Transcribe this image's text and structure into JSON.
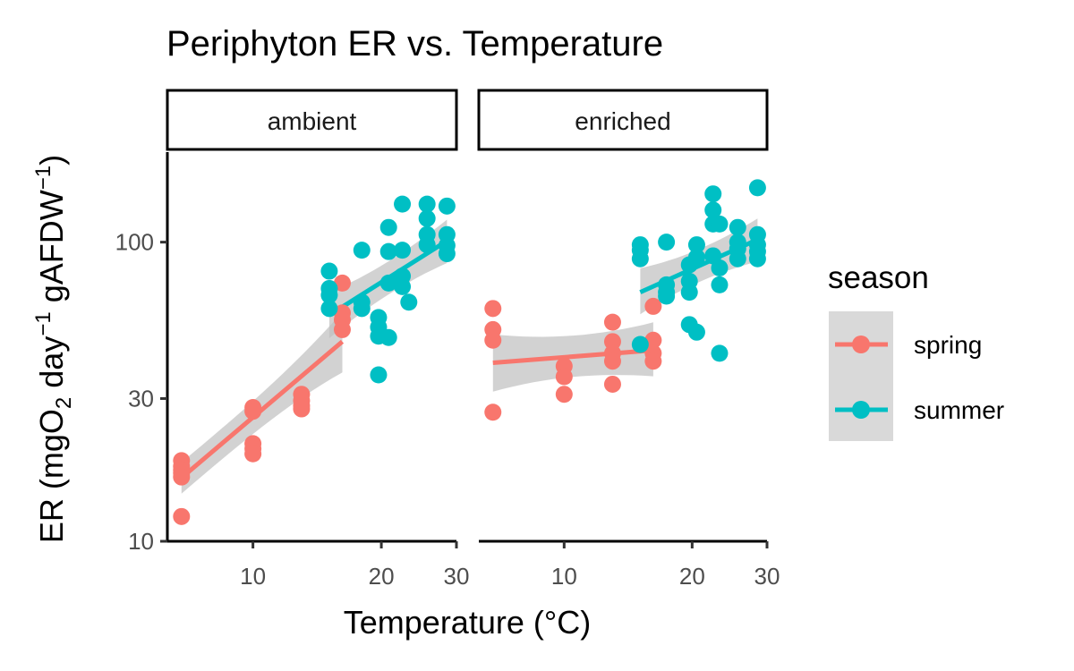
{
  "chart_data": {
    "type": "scatter",
    "title": "Periphyton ER vs. Temperature",
    "xlabel": "Temperature (°C)",
    "ylabel_parts": [
      "ER (mgO",
      "2",
      " day",
      "−1",
      " gAFDW",
      "−1",
      ")"
    ],
    "x_scale": "log",
    "y_scale": "log",
    "xlim": [
      6.3,
      30
    ],
    "ylim": [
      10,
      200
    ],
    "x_ticks": [
      10,
      20,
      30
    ],
    "x_tick_labels": [
      "10",
      "20",
      "30"
    ],
    "y_ticks": [
      10,
      30,
      100
    ],
    "y_tick_labels": [
      "10",
      "30",
      "100"
    ],
    "grid": false,
    "legend_title": "season",
    "legend_position": "right",
    "facets": [
      "ambient",
      "enriched"
    ],
    "colors": {
      "spring": "#F8766D",
      "summer": "#00BFC4",
      "band": "#bfbfbf"
    },
    "series": [
      {
        "name": "spring",
        "points": {
          "ambient": [
            [
              6.8,
              18.6
            ],
            [
              6.8,
              17.8
            ],
            [
              6.8,
              17.3
            ],
            [
              6.8,
              16.9
            ],
            [
              6.8,
              16.4
            ],
            [
              6.8,
              12.1
            ],
            [
              10,
              28.0
            ],
            [
              10,
              27.2
            ],
            [
              10,
              21.2
            ],
            [
              10,
              20.4
            ],
            [
              10,
              19.6
            ],
            [
              13,
              31.0
            ],
            [
              13,
              29.5
            ],
            [
              13,
              28.4
            ],
            [
              13,
              27.7
            ],
            [
              16.2,
              73.0
            ],
            [
              16.2,
              58.0
            ],
            [
              16.2,
              55.0
            ],
            [
              16.2,
              51.0
            ]
          ],
          "enriched": [
            [
              6.8,
              60.0
            ],
            [
              6.8,
              51.0
            ],
            [
              6.8,
              47.0
            ],
            [
              6.8,
              27.0
            ],
            [
              10,
              38.5
            ],
            [
              10,
              35.5
            ],
            [
              10,
              31.0
            ],
            [
              13,
              54.0
            ],
            [
              13,
              46.5
            ],
            [
              13,
              42.5
            ],
            [
              13,
              40.0
            ],
            [
              13,
              33.5
            ],
            [
              16.2,
              61.0
            ],
            [
              16.2,
              47.0
            ],
            [
              16.2,
              42.5
            ],
            [
              16.2,
              40.0
            ]
          ]
        },
        "fit": {
          "ambient": {
            "x": [
              6.8,
              16.2
            ],
            "y": [
              16.3,
              46.5
            ],
            "ci_low": [
              14.9,
              39.0
            ],
            "ci_high": [
              17.8,
              55.0
            ]
          },
          "enriched": {
            "x": [
              6.8,
              16.2
            ],
            "y": [
              39.5,
              43.5
            ],
            "ci_low": [
              33.5,
              37.5
            ],
            "ci_high": [
              46.5,
              51.0
            ]
          }
        }
      },
      {
        "name": "summer",
        "points": {
          "ambient": [
            [
              15.1,
              80.0
            ],
            [
              15.1,
              70.0
            ],
            [
              15.1,
              66.5
            ],
            [
              15.1,
              60.0
            ],
            [
              18,
              94.0
            ],
            [
              18,
              63.0
            ],
            [
              18,
              60.0
            ],
            [
              19.7,
              56.0
            ],
            [
              19.7,
              52.0
            ],
            [
              19.7,
              48.5
            ],
            [
              19.7,
              36.0
            ],
            [
              20.8,
              112.0
            ],
            [
              20.8,
              93.0
            ],
            [
              20.8,
              73.0
            ],
            [
              20.8,
              48.0
            ],
            [
              22.4,
              134.0
            ],
            [
              22.4,
              94.0
            ],
            [
              22.4,
              77.0
            ],
            [
              22.4,
              71.0
            ],
            [
              23.2,
              63.0
            ],
            [
              25.6,
              134.0
            ],
            [
              25.6,
              120.0
            ],
            [
              25.6,
              106.0
            ],
            [
              25.6,
              98.0
            ],
            [
              28.5,
              132.0
            ],
            [
              28.5,
              106.0
            ],
            [
              28.5,
              97.5
            ],
            [
              28.5,
              91.5
            ]
          ],
          "enriched": [
            [
              15.1,
              98.0
            ],
            [
              15.1,
              94.0
            ],
            [
              15.1,
              88.0
            ],
            [
              15.1,
              45.5
            ],
            [
              17.4,
              100.0
            ],
            [
              17.4,
              72.0
            ],
            [
              17.4,
              68.0
            ],
            [
              17.4,
              66.0
            ],
            [
              19.7,
              84.0
            ],
            [
              19.7,
              74.0
            ],
            [
              19.7,
              68.0
            ],
            [
              19.7,
              53.0
            ],
            [
              20.5,
              98.0
            ],
            [
              20.5,
              89.0
            ],
            [
              20.5,
              50.0
            ],
            [
              22.4,
              145.0
            ],
            [
              22.4,
              128.0
            ],
            [
              22.4,
              115.0
            ],
            [
              22.4,
              90.0
            ],
            [
              23.2,
              115.0
            ],
            [
              23.2,
              82.0
            ],
            [
              23.2,
              72.0
            ],
            [
              23.2,
              42.5
            ],
            [
              25.6,
              112.0
            ],
            [
              25.6,
              100.0
            ],
            [
              25.6,
              95.0
            ],
            [
              25.6,
              88.0
            ],
            [
              28.5,
              152.0
            ],
            [
              28.5,
              106.0
            ],
            [
              28.5,
              98.0
            ],
            [
              28.5,
              93.0
            ],
            [
              28.5,
              88.0
            ]
          ]
        },
        "fit": {
          "ambient": {
            "x": [
              15.1,
              28.5
            ],
            "y": [
              57.0,
              101.0
            ],
            "ci_low": [
              50.0,
              89.0
            ],
            "ci_high": [
              65.0,
              114.0
            ]
          },
          "enriched": {
            "x": [
              15.1,
              28.5
            ],
            "y": [
              68.0,
              102.0
            ],
            "ci_low": [
              60.0,
              90.0
            ],
            "ci_high": [
              78.0,
              115.0
            ]
          }
        }
      }
    ]
  }
}
